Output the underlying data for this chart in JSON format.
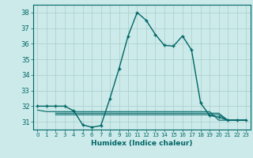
{
  "xlabel": "Humidex (Indice chaleur)",
  "background_color": "#cceaea",
  "grid_color": "#aacccc",
  "line_color": "#006666",
  "xlim": [
    -0.5,
    23.5
  ],
  "ylim": [
    30.5,
    38.5
  ],
  "yticks": [
    31,
    32,
    33,
    34,
    35,
    36,
    37,
    38
  ],
  "xticks": [
    0,
    1,
    2,
    3,
    4,
    5,
    6,
    7,
    8,
    9,
    10,
    11,
    12,
    13,
    14,
    15,
    16,
    17,
    18,
    19,
    20,
    21,
    22,
    23
  ],
  "xtick_labels": [
    "0",
    "1",
    "2",
    "3",
    "4",
    "5",
    "6",
    "7",
    "8",
    "9",
    "10",
    "11",
    "12",
    "13",
    "14",
    "15",
    "16",
    "17",
    "18",
    "19",
    "20",
    "21",
    "22",
    "23"
  ],
  "main_x": [
    0,
    1,
    2,
    3,
    4,
    5,
    6,
    7,
    8,
    9,
    10,
    11,
    12,
    13,
    14,
    15,
    16,
    17,
    18,
    19,
    20,
    21,
    22,
    23
  ],
  "main_y": [
    32.0,
    32.0,
    32.0,
    32.0,
    31.7,
    30.8,
    30.65,
    30.75,
    32.5,
    34.4,
    36.5,
    38.0,
    37.5,
    36.6,
    35.9,
    35.85,
    36.5,
    35.6,
    32.2,
    31.4,
    31.3,
    31.1,
    31.1,
    31.1
  ],
  "flat1_x": [
    0,
    1,
    2,
    3,
    4,
    5,
    6,
    7,
    8,
    9,
    10,
    11,
    12,
    13,
    14,
    15,
    16,
    17,
    18,
    19,
    20,
    21,
    22,
    23
  ],
  "flat1_y": [
    31.75,
    31.65,
    31.65,
    31.65,
    31.65,
    31.65,
    31.65,
    31.65,
    31.65,
    31.65,
    31.65,
    31.65,
    31.65,
    31.65,
    31.65,
    31.65,
    31.65,
    31.65,
    31.65,
    31.65,
    31.1,
    31.1,
    31.1,
    31.1
  ],
  "flat2_x": [
    2,
    3,
    4,
    5,
    6,
    7,
    8,
    9,
    10,
    11,
    12,
    13,
    14,
    15,
    16,
    17,
    18,
    19,
    20,
    21,
    22,
    23
  ],
  "flat2_y": [
    31.55,
    31.55,
    31.55,
    31.55,
    31.55,
    31.55,
    31.55,
    31.55,
    31.55,
    31.55,
    31.55,
    31.55,
    31.55,
    31.55,
    31.55,
    31.55,
    31.55,
    31.55,
    31.55,
    31.1,
    31.1,
    31.1
  ],
  "flat3_x": [
    2,
    3,
    4,
    5,
    6,
    7,
    8,
    9,
    10,
    11,
    12,
    13,
    14,
    15,
    16,
    17,
    18,
    19,
    20,
    21,
    22,
    23
  ],
  "flat3_y": [
    31.45,
    31.45,
    31.45,
    31.45,
    31.45,
    31.45,
    31.45,
    31.45,
    31.45,
    31.45,
    31.45,
    31.45,
    31.45,
    31.45,
    31.45,
    31.45,
    31.45,
    31.45,
    31.45,
    31.1,
    31.1,
    31.1
  ]
}
